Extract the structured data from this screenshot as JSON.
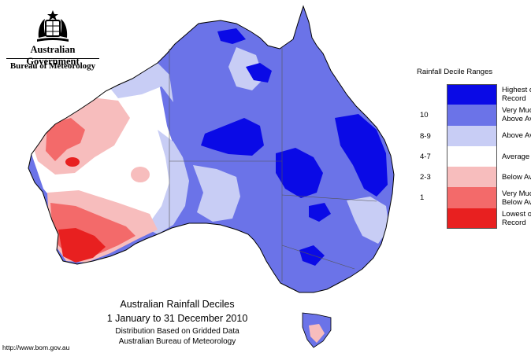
{
  "header": {
    "government": "Australian Government",
    "bureau": "Bureau of Meteorology"
  },
  "map": {
    "colors": {
      "lowest": "#e82020",
      "very_much_below": "#f36a6a",
      "below": "#f7bdbd",
      "average": "#ffffff",
      "above": "#c8cdf5",
      "very_much_above": "#6b73e8",
      "highest": "#0a0ae6"
    }
  },
  "legend": {
    "title": "Rainfall Decile Ranges",
    "items": [
      {
        "range": "",
        "label": "Highest on\nRecord",
        "color": "#0a0ae6"
      },
      {
        "range": "10",
        "label": "Very Much\nAbove Average",
        "color": "#6b73e8"
      },
      {
        "range": "8-9",
        "label": "Above Average",
        "color": "#c8cdf5"
      },
      {
        "range": "4-7",
        "label": "Average",
        "color": "#ffffff"
      },
      {
        "range": "2-3",
        "label": "Below Average",
        "color": "#f7bdbd"
      },
      {
        "range": "1",
        "label": "Very Much\nBelow Average",
        "color": "#f36a6a"
      },
      {
        "range": "",
        "label": "Lowest on\nRecord",
        "color": "#e82020"
      }
    ]
  },
  "caption": {
    "title": "Australian Rainfall Deciles",
    "period": "1 January to 31 December 2010",
    "note": "Distribution Based on Gridded Data",
    "source": "Australian Bureau of Meteorology"
  },
  "footer": {
    "url": "http://www.bom.gov.au"
  }
}
